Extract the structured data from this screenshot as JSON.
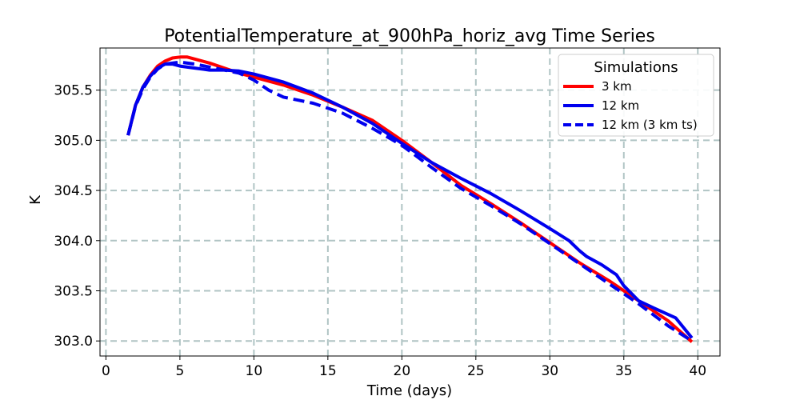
{
  "chart_data": {
    "type": "line",
    "title": "PotentialTemperature_at_900hPa_horiz_avg Time Series",
    "xlabel": "Time (days)",
    "ylabel": "K",
    "xlim": [
      -0.4,
      41.5
    ],
    "ylim": [
      302.85,
      305.92
    ],
    "xticks": [
      0,
      5,
      10,
      15,
      20,
      25,
      30,
      35,
      40
    ],
    "yticks": [
      303.0,
      303.5,
      304.0,
      304.5,
      305.0,
      305.5
    ],
    "grid": true,
    "legend": {
      "title": "Simulations",
      "position": "top-right"
    },
    "series": [
      {
        "name": "3 km",
        "color": "#ff0000",
        "dash": "solid",
        "x": [
          1.5,
          2.0,
          2.5,
          3.0,
          3.5,
          4.0,
          4.5,
          5.0,
          5.5,
          6.0,
          7.0,
          8.0,
          9.0,
          10.0,
          12.0,
          14.0,
          16.0,
          18.0,
          20.0,
          22.0,
          24.0,
          26.0,
          28.0,
          30.0,
          32.0,
          34.0,
          36.0,
          38.0,
          39.6
        ],
        "y": [
          305.05,
          305.35,
          305.53,
          305.65,
          305.74,
          305.79,
          305.82,
          305.83,
          305.83,
          305.81,
          305.77,
          305.72,
          305.67,
          305.63,
          305.55,
          305.45,
          305.33,
          305.2,
          305.0,
          304.78,
          304.55,
          304.37,
          304.18,
          303.98,
          303.78,
          303.6,
          303.4,
          303.2,
          302.99
        ]
      },
      {
        "name": "12 km",
        "color": "#0000ee",
        "dash": "solid",
        "x": [
          1.5,
          2.0,
          2.5,
          3.0,
          3.5,
          4.0,
          4.5,
          5.0,
          6.0,
          7.0,
          8.0,
          9.0,
          10.0,
          12.0,
          14.0,
          16.0,
          18.0,
          20.0,
          22.0,
          24.0,
          26.0,
          28.0,
          30.0,
          31.3,
          32.0,
          32.5,
          33.5,
          34.5,
          35.0,
          36.0,
          37.0,
          38.5,
          39.6
        ],
        "y": [
          305.05,
          305.35,
          305.53,
          305.64,
          305.72,
          305.76,
          305.76,
          305.74,
          305.72,
          305.7,
          305.7,
          305.69,
          305.66,
          305.58,
          305.47,
          305.33,
          305.17,
          304.97,
          304.78,
          304.62,
          304.47,
          304.3,
          304.12,
          304.0,
          303.9,
          303.84,
          303.76,
          303.66,
          303.55,
          303.4,
          303.33,
          303.23,
          303.03
        ]
      },
      {
        "name": "12 km (3 km ts)",
        "color": "#0000ee",
        "dash": "dashed",
        "x": [
          1.5,
          2.0,
          2.5,
          3.0,
          3.5,
          4.0,
          4.5,
          5.0,
          6.0,
          7.0,
          8.0,
          9.0,
          10.0,
          11.0,
          12.0,
          14.0,
          16.0,
          18.0,
          20.0,
          22.0,
          24.0,
          26.0,
          28.0,
          30.0,
          32.0,
          34.0,
          36.0,
          38.0,
          39.6
        ],
        "y": [
          305.05,
          305.34,
          305.51,
          305.63,
          305.71,
          305.76,
          305.77,
          305.78,
          305.76,
          305.73,
          305.7,
          305.67,
          305.6,
          305.5,
          305.43,
          305.37,
          305.27,
          305.12,
          304.95,
          304.73,
          304.52,
          304.35,
          304.17,
          303.97,
          303.77,
          303.57,
          303.37,
          303.15,
          303.0
        ]
      }
    ]
  }
}
